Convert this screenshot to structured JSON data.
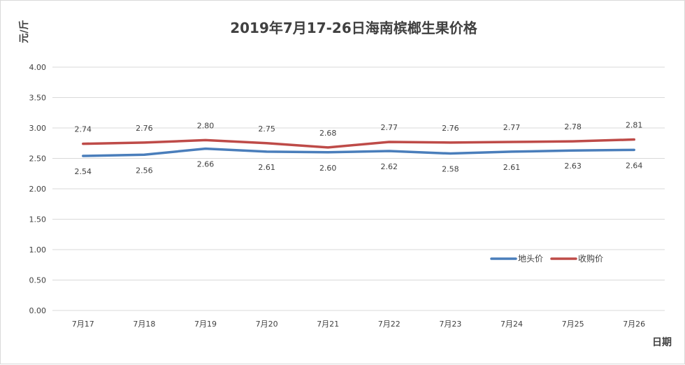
{
  "chart_data": {
    "type": "line",
    "title": "2019年7月17-26日海南槟榔生果价格",
    "ylabel": "元/斤",
    "xlabel": "日期",
    "categories": [
      "7月17",
      "7月18",
      "7月19",
      "7月20",
      "7月21",
      "7月22",
      "7月23",
      "7月24",
      "7月25",
      "7月26"
    ],
    "ylim": [
      0,
      4
    ],
    "yticks": [
      "0.00",
      "0.50",
      "1.00",
      "1.50",
      "2.00",
      "2.50",
      "3.00",
      "3.50",
      "4.00"
    ],
    "grid": true,
    "legend_position": "right",
    "series": [
      {
        "name": "地头价",
        "color": "#4a7ebb",
        "values": [
          2.54,
          2.56,
          2.66,
          2.61,
          2.6,
          2.62,
          2.58,
          2.61,
          2.63,
          2.64
        ],
        "labels": [
          "2.54",
          "2.56",
          "2.66",
          "2.61",
          "2.60",
          "2.62",
          "2.58",
          "2.61",
          "2.63",
          "2.64"
        ]
      },
      {
        "name": "收购价",
        "color": "#be4b48",
        "values": [
          2.74,
          2.76,
          2.8,
          2.75,
          2.68,
          2.77,
          2.76,
          2.77,
          2.78,
          2.81
        ],
        "labels": [
          "2.74",
          "2.76",
          "2.80",
          "2.75",
          "2.68",
          "2.77",
          "2.76",
          "2.77",
          "2.78",
          "2.81"
        ]
      }
    ]
  }
}
